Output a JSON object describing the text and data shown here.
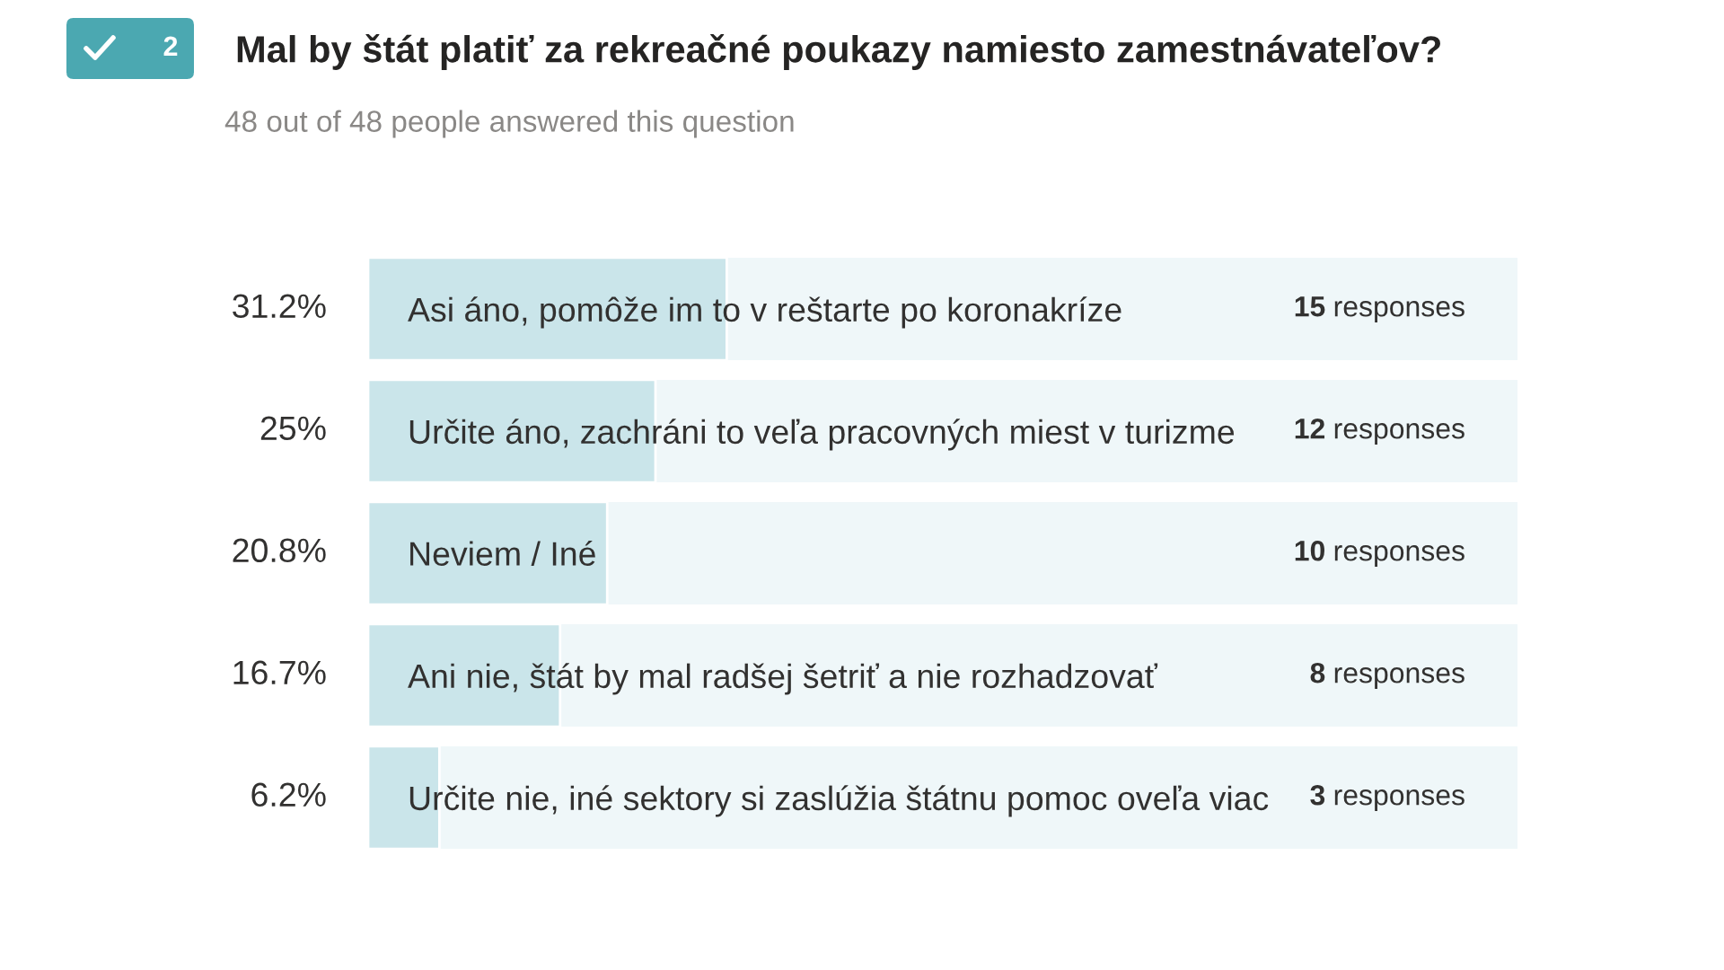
{
  "chart_data": {
    "type": "bar",
    "orientation": "horizontal",
    "title": "Mal by štát platiť za rekreačné poukazy namiesto zamestnávateľov?",
    "subtitle": "48 out of 48 people answered this question",
    "categories": [
      "Asi áno, pomôže im to v reštarte po koronakríze",
      "Určite áno, zachráni to veľa pracovných miest v turizme",
      "Neviem / Iné",
      "Ani nie, štát by mal radšej šetriť a nie rozhadzovať",
      "Určite nie, iné sektory si zaslúžia štátnu pomoc oveľa viac"
    ],
    "values": [
      31.2,
      25,
      20.8,
      16.7,
      6.2
    ],
    "value_labels": [
      "31.2%",
      "25%",
      "20.8%",
      "16.7%",
      "6.2%"
    ],
    "color": "#cae5ea",
    "xlim": [
      0,
      100
    ],
    "tick_labels": "y",
    "annotations": [
      "2",
      "15 responses",
      "12 responses",
      "10 responses",
      "8 responses",
      "3 responses"
    ]
  }
}
